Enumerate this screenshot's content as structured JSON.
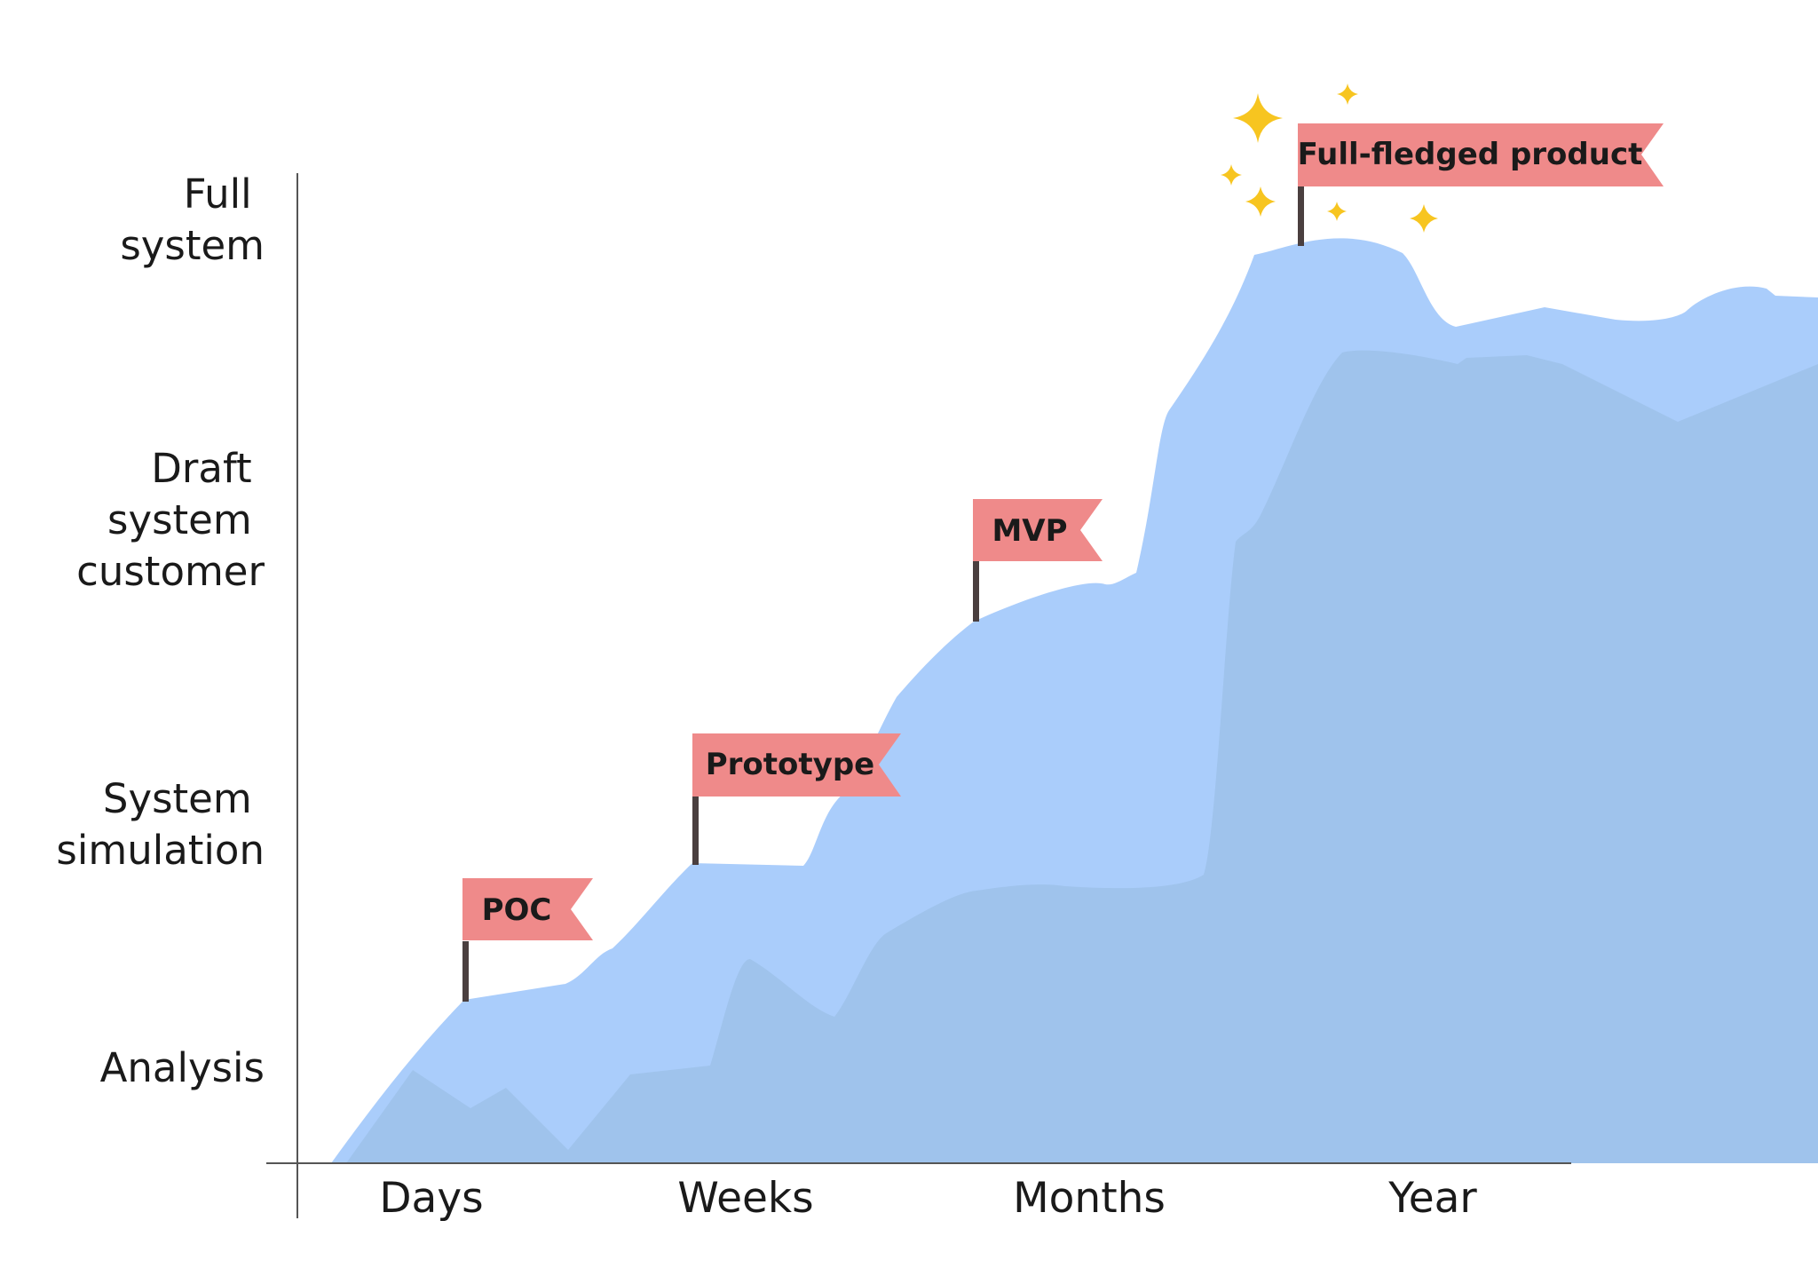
{
  "y_axis": {
    "levels": [
      {
        "lines": [
          "Analysis"
        ]
      },
      {
        "lines": [
          "System",
          "simulation"
        ]
      },
      {
        "lines": [
          "Draft",
          "system",
          "customer"
        ]
      },
      {
        "lines": [
          "Full",
          "system"
        ]
      }
    ]
  },
  "x_axis": {
    "labels": [
      "Days",
      "Weeks",
      "Months",
      "Year"
    ]
  },
  "milestones": [
    {
      "label": "POC"
    },
    {
      "label": "Prototype"
    },
    {
      "label": "MVP"
    },
    {
      "label": "Full-fledged product"
    }
  ],
  "colors": {
    "front_area": "#aacdfb",
    "back_area": "#9fc3ec",
    "flag": "#ef8a8a",
    "pole": "#4a3f3f",
    "sparkle": "#f7c520",
    "axis": "#555555"
  },
  "decorations": {
    "sparkle_icon": "sparkle-icon",
    "flag_icon": "flag-icon"
  }
}
